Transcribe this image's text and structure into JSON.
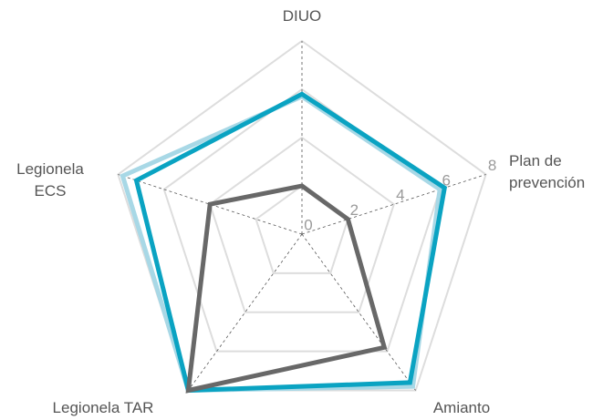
{
  "chart_data": {
    "type": "radar",
    "axes": [
      "DIUO",
      "Plan de prevención",
      "Amianto",
      "Legionela TAR",
      "Legionela ECS"
    ],
    "axis_label_lines": [
      [
        "DIUO"
      ],
      [
        "Plan de",
        "prevención"
      ],
      [
        "Amianto"
      ],
      [
        "Legionela TAR"
      ],
      [
        "Legionela",
        "ECS"
      ]
    ],
    "r_range": [
      0,
      8
    ],
    "r_ticks": [
      "0",
      "2",
      "4",
      "6",
      "8"
    ],
    "grid": true,
    "series": [
      {
        "values": [
          5.7,
          6.0,
          7.8,
          8.0,
          7.8
        ],
        "color": "#a8d8e6"
      },
      {
        "values": [
          5.8,
          6.2,
          7.6,
          8.0,
          7.2
        ],
        "color": "#0aa3c2"
      },
      {
        "values": [
          2.0,
          2.0,
          5.8,
          8.0,
          4.0
        ],
        "color": "#686868"
      }
    ],
    "colors": {
      "grid": "#dddddd",
      "spoke": "#555555"
    }
  }
}
